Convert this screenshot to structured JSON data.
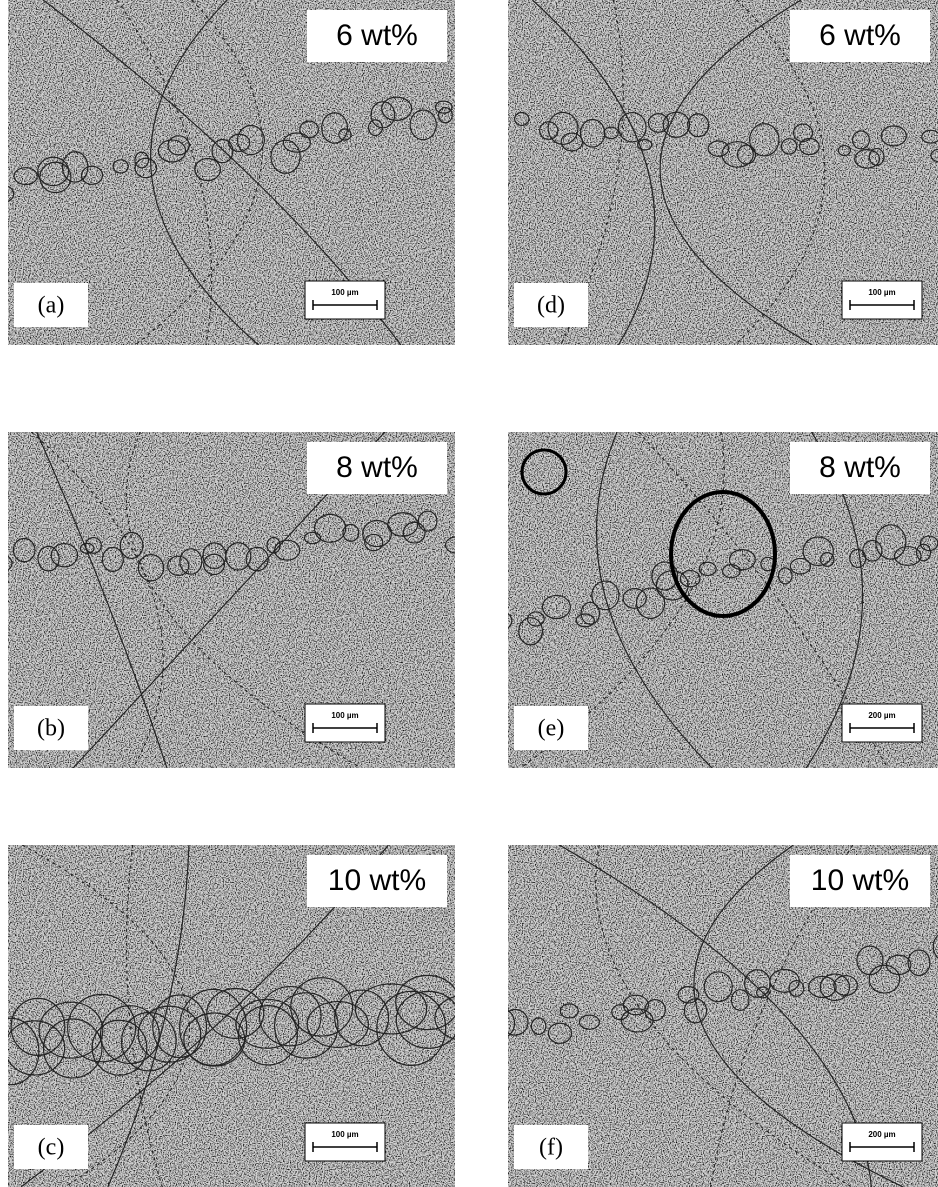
{
  "panels": [
    {
      "label": "(a)",
      "concentration": "6 wt%",
      "scale_bar": "100 µm"
    },
    {
      "label": "(b)",
      "concentration": "8 wt%",
      "scale_bar": "100 µm"
    },
    {
      "label": "(c)",
      "concentration": "10 wt%",
      "scale_bar": "100 µm"
    },
    {
      "label": "(d)",
      "concentration": "6 wt%",
      "scale_bar": "100 µm"
    },
    {
      "label": "(e)",
      "concentration": "8 wt%",
      "scale_bar": "200 µm"
    },
    {
      "label": "(f)",
      "concentration": "10 wt%",
      "scale_bar": "200 µm"
    }
  ]
}
